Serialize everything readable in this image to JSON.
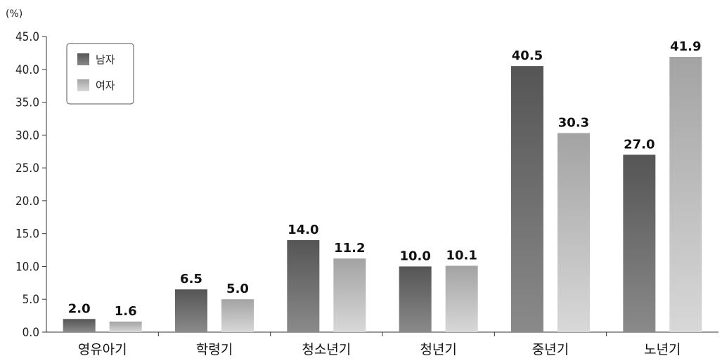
{
  "chart_data": {
    "type": "bar",
    "unit": "(%)",
    "categories": [
      "영유아기",
      "학령기",
      "청소년기",
      "청년기",
      "중년기",
      "노년기"
    ],
    "series": [
      {
        "name": "남자",
        "values": [
          2.0,
          6.5,
          14.0,
          10.0,
          40.5,
          27.0
        ],
        "labels": [
          "2.0",
          "6.5",
          "14.0",
          "10.0",
          "40.5",
          "27.0"
        ],
        "color_top": "#555555",
        "color_bottom": "#8a8a8a"
      },
      {
        "name": "여자",
        "values": [
          1.6,
          5.0,
          11.2,
          10.1,
          30.3,
          41.9
        ],
        "labels": [
          "1.6",
          "5.0",
          "11.2",
          "10.1",
          "30.3",
          "41.9"
        ],
        "color_top": "#a3a3a3",
        "color_bottom": "#d8d8d8"
      }
    ],
    "ylim": [
      0,
      45
    ],
    "yticks": [
      "0.0",
      "5.0",
      "10.0",
      "15.0",
      "20.0",
      "25.0",
      "30.0",
      "35.0",
      "40.0",
      "45.0"
    ],
    "legend_position": "top-left",
    "grid": false
  }
}
